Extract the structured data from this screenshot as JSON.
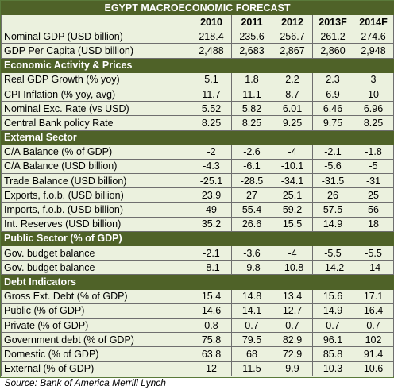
{
  "title": "EGYPT MACROECONOMIC FORECAST",
  "columns": [
    "2010",
    "2011",
    "2012",
    "2013F",
    "2014F"
  ],
  "top_rows": [
    {
      "label": "Nominal GDP (USD billion)",
      "values": [
        "218.4",
        "235.6",
        "256.7",
        "261.2",
        "274.6"
      ]
    },
    {
      "label": "GDP Per Capita (USD billion)",
      "values": [
        "2,488",
        "2,683",
        "2,867",
        "2,860",
        "2,948"
      ]
    }
  ],
  "sections": [
    {
      "title": "Economic Activity & Prices",
      "rows": [
        {
          "label": "Real GDP Growth (% yoy)",
          "values": [
            "5.1",
            "1.8",
            "2.2",
            "2.3",
            "3"
          ]
        },
        {
          "label": "CPI Inflation (% yoy, avg)",
          "values": [
            "11.7",
            "11.1",
            "8.7",
            "6.9",
            "10"
          ]
        },
        {
          "label": "Nominal Exc. Rate (vs USD)",
          "values": [
            "5.52",
            "5.82",
            "6.01",
            "6.46",
            "6.96"
          ]
        },
        {
          "label": "Central Bank policy Rate",
          "values": [
            "8.25",
            "8.25",
            "9.25",
            "9.75",
            "8.25"
          ]
        }
      ]
    },
    {
      "title": "External Sector",
      "rows": [
        {
          "label": "C/A Balance (% of GDP)",
          "values": [
            "-2",
            "-2.6",
            "-4",
            "-2.1",
            "-1.8"
          ]
        },
        {
          "label": "C/A Balance (USD billion)",
          "values": [
            "-4.3",
            "-6.1",
            "-10.1",
            "-5.6",
            "-5"
          ]
        },
        {
          "label": "Trade Balance (USD billion)",
          "values": [
            "-25.1",
            "-28.5",
            "-34.1",
            "-31.5",
            "-31"
          ]
        },
        {
          "label": "Exports, f.o.b. (USD billion)",
          "values": [
            "23.9",
            "27",
            "25.1",
            "26",
            "25"
          ]
        },
        {
          "label": "Imports, f.o.b. (USD billion)",
          "values": [
            "49",
            "55.4",
            "59.2",
            "57.5",
            "56"
          ]
        },
        {
          "label": "Int. Reserves (USD billion)",
          "values": [
            "35.2",
            "26.6",
            "15.5",
            "14.9",
            "18"
          ]
        }
      ]
    },
    {
      "title": "Public Sector (% of GDP)",
      "rows": [
        {
          "label": "Gov. budget balance",
          "values": [
            "-2.1",
            "-3.6",
            "-4",
            "-5.5",
            "-5.5"
          ]
        },
        {
          "label": "Gov. budget balance",
          "values": [
            "-8.1",
            "-9.8",
            "-10.8",
            "-14.2",
            "-14"
          ]
        }
      ]
    },
    {
      "title": "Debt Indicators",
      "rows": [
        {
          "label": "Gross Ext. Debt (% of GDP)",
          "values": [
            "15.4",
            "14.8",
            "13.4",
            "15.6",
            "17.1"
          ]
        },
        {
          "label": "Public (% of GDP)",
          "values": [
            "14.6",
            "14.1",
            "12.7",
            "14.9",
            "16.4"
          ]
        },
        {
          "label": "Private (% of GDP)",
          "values": [
            "0.8",
            "0.7",
            "0.7",
            "0.7",
            "0.7"
          ]
        },
        {
          "label": "Government debt (% of GDP)",
          "values": [
            "75.8",
            "79.5",
            "82.9",
            "96.1",
            "102"
          ]
        },
        {
          "label": "Domestic (% of GDP)",
          "values": [
            "63.8",
            "68",
            "72.9",
            "85.8",
            "91.4"
          ]
        },
        {
          "label": "External (% of GDP)",
          "values": [
            "12",
            "11.5",
            "9.9",
            "10.3",
            "10.6"
          ]
        }
      ]
    }
  ],
  "source": "Source: Bank of America Merrill Lynch"
}
